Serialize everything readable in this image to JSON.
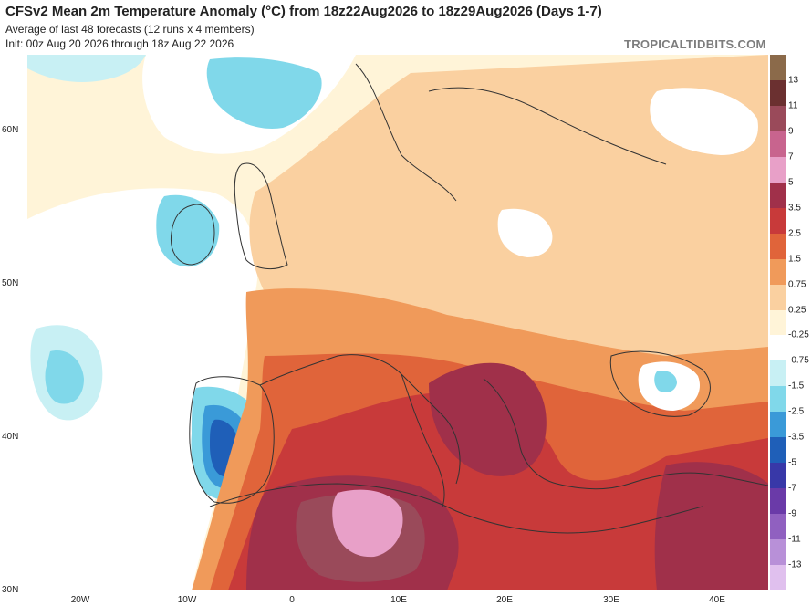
{
  "header": {
    "title": "CFSv2 Mean 2m Temperature Anomaly (°C) from 18z22Aug2026 to 18z29Aug2026 (Days 1-7)",
    "subtitle1": "Average of last 48 forecasts (12 runs x 4 members)",
    "subtitle2": "Init: 00z Aug 20 2026 through 18z Aug 22 2026",
    "brand": "TROPICALTIDBITS.COM"
  },
  "axes": {
    "lat_labels": [
      "60N",
      "50N",
      "40N",
      "30N"
    ],
    "lon_labels": [
      "20W",
      "10W",
      "0",
      "10E",
      "20E",
      "30E",
      "40E"
    ]
  },
  "colorbar": {
    "labels": [
      "13",
      "11",
      "9",
      "7",
      "5",
      "3.5",
      "2.5",
      "1.5",
      "0.75",
      "0.25",
      "-0.25",
      "-0.75",
      "-1.5",
      "-2.5",
      "-3.5",
      "-5",
      "-7",
      "-9",
      "-11",
      "-13"
    ],
    "colors": [
      "#8b6a4a",
      "#6b3030",
      "#9a4a5a",
      "#c8648e",
      "#e8a0c8",
      "#a0304a",
      "#c83a3a",
      "#e0643a",
      "#f09a5a",
      "#fad0a0",
      "#fff4d8",
      "#ffffff",
      "#c8f0f4",
      "#80d8ea",
      "#3a9ad8",
      "#1f5fb8",
      "#3838a8",
      "#6a3aa8",
      "#9060c0",
      "#b890d8",
      "#e0c0ee"
    ]
  },
  "map": {
    "colors": {
      "ocean_neutral": "#ffffff",
      "light": "#fff4d8",
      "warm1": "#fad0a0",
      "warm2": "#f09a5a",
      "warm3": "#e0643a",
      "warm4": "#c83a3a",
      "hot": "#a0304a",
      "hotter": "#9a4a5a",
      "pink": "#e8a0c8",
      "cool1": "#c8f0f4",
      "cool2": "#80d8ea",
      "cool3": "#3a9ad8",
      "cool4": "#1f5fb8",
      "coast": "#333333"
    }
  }
}
